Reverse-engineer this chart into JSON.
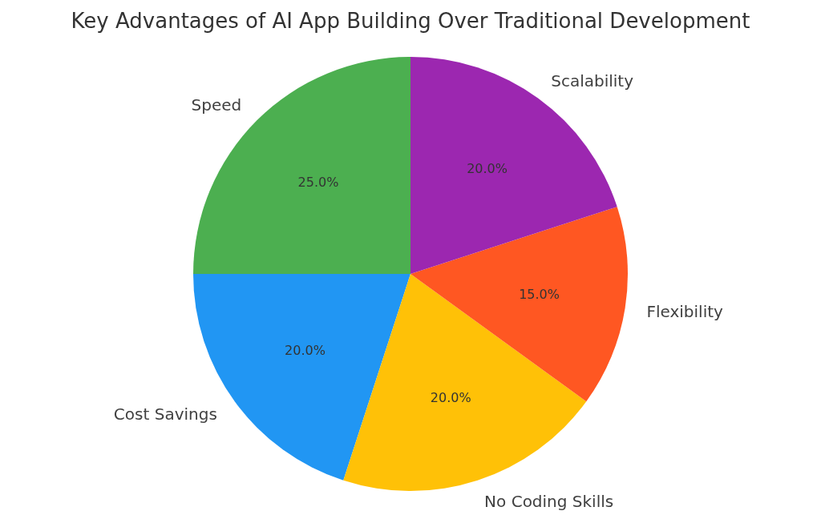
{
  "chart_data": {
    "type": "pie",
    "title": "Key Advantages of AI App Building Over Traditional Development",
    "categories": [
      "Speed",
      "Cost Savings",
      "No Coding Skills",
      "Flexibility",
      "Scalability"
    ],
    "values": [
      25,
      20,
      20,
      15,
      20
    ],
    "colors": [
      "#4caf50",
      "#2196f3",
      "#ffc107",
      "#ff5722",
      "#9c27b0"
    ],
    "value_labels": [
      "25.0%",
      "20.0%",
      "20.0%",
      "15.0%",
      "20.0%"
    ]
  }
}
